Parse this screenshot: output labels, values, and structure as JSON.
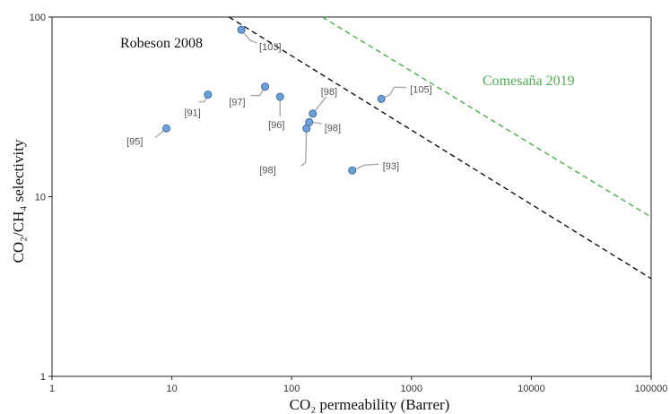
{
  "chart_data": {
    "type": "scatter",
    "xlabel": "CO₂ permeability  (Barrer)",
    "ylabel": "CO₂/CH₄ selectivity",
    "x_scale": "log",
    "y_scale": "log",
    "xlim": [
      1,
      100000
    ],
    "ylim": [
      1,
      100
    ],
    "x_ticks": [
      "1",
      "10",
      "100",
      "1000",
      "10000",
      "100000"
    ],
    "y_ticks": [
      "1",
      "10",
      "100"
    ],
    "grid": false,
    "points": [
      {
        "x": 9,
        "y": 24,
        "label": "[95]"
      },
      {
        "x": 20,
        "y": 37,
        "label": "[91]"
      },
      {
        "x": 38,
        "y": 85,
        "label": "[103]"
      },
      {
        "x": 60,
        "y": 41,
        "label": "[97]"
      },
      {
        "x": 80,
        "y": 36,
        "label": "[96]"
      },
      {
        "x": 133,
        "y": 24,
        "label": "[98]"
      },
      {
        "x": 140,
        "y": 26,
        "label": "[98]"
      },
      {
        "x": 150,
        "y": 29,
        "label": "[98]"
      },
      {
        "x": 320,
        "y": 14,
        "label": "[93]"
      },
      {
        "x": 560,
        "y": 35,
        "label": "[105]"
      }
    ],
    "lines": [
      {
        "name": "Robeson  2008",
        "color": "#111111",
        "x": [
          30,
          100000
        ],
        "y": [
          100,
          3.5
        ]
      },
      {
        "name": "Comesaña  2019",
        "color": "#4caf50",
        "x": [
          180,
          100000
        ],
        "y": [
          100,
          7.7
        ]
      }
    ],
    "marker_color": "#6f9fd8"
  }
}
